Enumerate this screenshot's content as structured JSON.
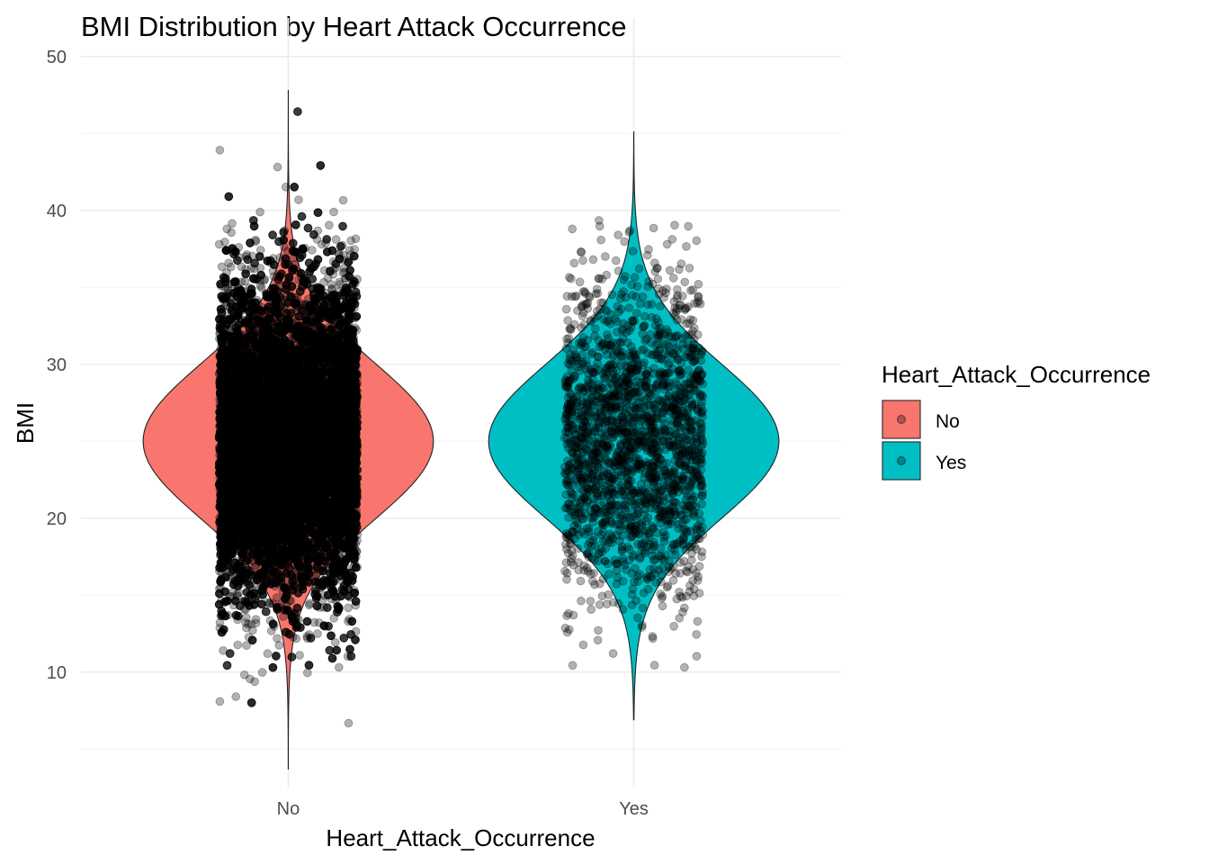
{
  "chart_data": {
    "type": "violin",
    "title": "BMI Distribution by Heart Attack Occurrence",
    "xlabel": "Heart_Attack_Occurrence",
    "ylabel": "BMI",
    "categories": [
      "No",
      "Yes"
    ],
    "y_ticks": [
      10,
      20,
      30,
      40,
      50
    ],
    "ylim": [
      2.5,
      52.5
    ],
    "grid": true,
    "legend": {
      "title": "Heart_Attack_Occurrence",
      "position": "right",
      "entries": [
        "No",
        "Yes"
      ]
    },
    "colors": {
      "No": "#F8766D",
      "Yes": "#00BFC4"
    },
    "series": [
      {
        "category": "No",
        "bmi_range": [
          3.7,
          47.8
        ],
        "center": 25,
        "sd": 5,
        "points_approx": 20000
      },
      {
        "category": "Yes",
        "bmi_range": [
          6.9,
          45.1
        ],
        "center": 25,
        "sd": 5,
        "points_approx": 2000
      }
    ],
    "point_style": {
      "color": "#000000",
      "alpha": 0.3
    }
  }
}
